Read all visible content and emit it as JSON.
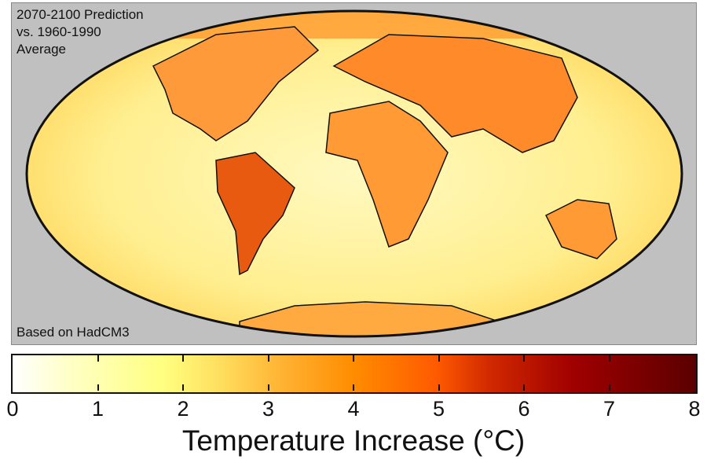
{
  "map": {
    "title_lines": [
      "2070-2100 Prediction",
      "vs. 1960-1990",
      "Average"
    ],
    "source_note": "Based on HadCM3",
    "projection": "mollweide"
  },
  "colorbar": {
    "ticks": [
      "0",
      "1",
      "2",
      "3",
      "4",
      "5",
      "6",
      "7",
      "8"
    ],
    "label": "Temperature Increase (°C)",
    "range": [
      0,
      8
    ],
    "colors": [
      "#ffffff",
      "#ffffc8",
      "#ffff80",
      "#ffb030",
      "#ff8c00",
      "#ff5a00",
      "#a00000",
      "#5a0000"
    ]
  }
}
